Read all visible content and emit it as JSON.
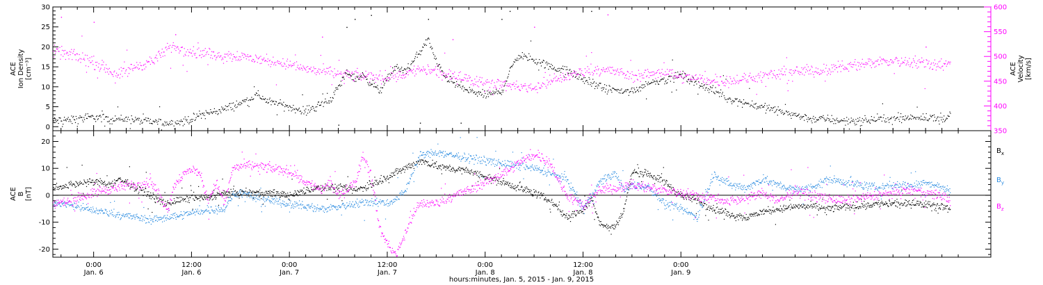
{
  "page": {
    "xaxis_title": "hours:minutes, Jan.  5, 2015 - Jan.  9, 2015"
  },
  "chart_data": [
    {
      "type": "scatter",
      "ylabel_left": [
        "ACE",
        "Ion Density",
        "[cm⁻³]"
      ],
      "ylabel_right": [
        "ACE",
        "Velocity",
        "[km/s]"
      ],
      "xlim": [
        -5,
        110
      ],
      "ylim": [
        -1,
        30
      ],
      "ylim_right": [
        350,
        600
      ],
      "yticks": [
        0,
        5,
        10,
        15,
        20,
        25,
        30
      ],
      "yticks_right": [
        350,
        400,
        450,
        500,
        550,
        600
      ],
      "series": [
        {
          "axis": "left",
          "color": "#000000",
          "x": [
            -5,
            -2,
            0,
            2,
            4,
            6,
            8,
            10,
            12,
            13,
            14,
            16,
            18,
            20,
            22,
            24,
            26,
            27,
            28,
            29,
            30,
            31,
            32,
            33,
            34,
            35,
            36,
            37,
            38,
            39,
            40,
            41,
            42,
            43,
            44,
            45,
            46,
            47,
            48,
            49,
            50,
            51,
            52,
            54,
            56,
            58,
            60,
            62,
            64,
            66,
            68,
            70,
            72,
            74,
            76,
            78,
            80,
            82,
            84,
            86,
            88,
            90,
            92,
            94,
            96,
            98,
            100,
            102,
            104,
            105
          ],
          "y": [
            1.5,
            2,
            2.5,
            2,
            2,
            1.5,
            1.2,
            1,
            2,
            3,
            3.5,
            4.5,
            6,
            8,
            6,
            5,
            4,
            5,
            6,
            7,
            10,
            14,
            12,
            13,
            11,
            9,
            12,
            15,
            14,
            16,
            19,
            22,
            16,
            13,
            11,
            10,
            9,
            8.5,
            8,
            8.5,
            9,
            14,
            18,
            17,
            15,
            14,
            12,
            10,
            9,
            9,
            11,
            12,
            13,
            11,
            9,
            7,
            6,
            5,
            4,
            3,
            2,
            2,
            1.5,
            1.5,
            2,
            2,
            2.5,
            2.5,
            2,
            3
          ],
          "noise": 0.9,
          "outliers": [
            [
              31,
              25
            ],
            [
              32,
              27
            ],
            [
              34,
              28
            ],
            [
              41,
              27
            ],
            [
              50,
              27
            ],
            [
              51,
              29
            ],
            [
              61,
              29
            ],
            [
              40,
              1
            ],
            [
              30,
              0.5
            ],
            [
              45,
              1
            ]
          ]
        },
        {
          "axis": "right",
          "color": "#ff00ff",
          "x": [
            -5,
            -3,
            -1,
            1,
            2,
            3,
            4,
            5,
            6,
            7,
            8,
            9,
            10,
            12,
            14,
            16,
            18,
            20,
            22,
            24,
            26,
            28,
            30,
            32,
            34,
            36,
            38,
            40,
            42,
            44,
            46,
            48,
            50,
            52,
            54,
            56,
            58,
            60,
            62,
            64,
            66,
            68,
            70,
            72,
            74,
            76,
            78,
            80,
            82,
            84,
            86,
            88,
            90,
            92,
            94,
            96,
            98,
            100,
            102,
            104,
            105
          ],
          "y": [
            510,
            505,
            495,
            480,
            470,
            465,
            470,
            480,
            485,
            490,
            500,
            515,
            520,
            510,
            505,
            503,
            502,
            495,
            490,
            485,
            475,
            470,
            465,
            462,
            460,
            458,
            465,
            475,
            470,
            460,
            455,
            448,
            445,
            440,
            438,
            450,
            460,
            470,
            475,
            470,
            460,
            465,
            470,
            460,
            455,
            450,
            452,
            455,
            460,
            465,
            470,
            472,
            475,
            480,
            485,
            490,
            492,
            490,
            488,
            485,
            483
          ],
          "noise": 10,
          "outliers": [
            [
              -4,
              580
            ],
            [
              0,
              570
            ],
            [
              10,
              545
            ],
            [
              28,
              540
            ],
            [
              54,
              560
            ],
            [
              63,
              585
            ],
            [
              102,
              520
            ],
            [
              44,
              535
            ]
          ]
        }
      ]
    },
    {
      "type": "scatter",
      "ylabel_left": [
        "ACE",
        "B",
        "[nT]"
      ],
      "xlim": [
        -5,
        110
      ],
      "ylim": [
        -23,
        24
      ],
      "yticks": [
        -20,
        -10,
        0,
        10,
        20
      ],
      "zero_line": true,
      "legend": [
        {
          "label": "B",
          "sub": "x",
          "color": "#000000"
        },
        {
          "label": "B",
          "sub": "y",
          "color": "#2a8be0"
        },
        {
          "label": "B",
          "sub": "z",
          "color": "#ff00ff"
        }
      ],
      "series": [
        {
          "name": "Bx",
          "color": "#000000",
          "noise": 1.2,
          "x": [
            -5,
            -3,
            -1,
            1,
            2,
            3,
            4,
            5,
            6,
            7,
            8,
            9,
            10,
            12,
            14,
            16,
            18,
            20,
            22,
            24,
            26,
            28,
            30,
            32,
            34,
            36,
            38,
            40,
            42,
            44,
            46,
            48,
            50,
            52,
            54,
            56,
            58,
            60,
            61,
            62,
            63,
            64,
            65,
            66,
            68,
            70,
            72,
            74,
            76,
            78,
            80,
            82,
            84,
            86,
            88,
            90,
            92,
            94,
            96,
            98,
            100,
            102,
            104,
            105
          ],
          "y": [
            3,
            4,
            5,
            5,
            4,
            6,
            5,
            3,
            2,
            0,
            -2,
            -3,
            -2,
            -1,
            -1,
            1,
            1,
            1,
            1,
            0,
            2,
            3,
            3,
            2,
            4,
            7,
            10,
            13,
            11,
            10,
            9,
            7,
            5,
            3,
            1,
            -2,
            -8,
            -5,
            -1,
            -10,
            -12,
            -11,
            -5,
            9,
            8,
            5,
            0,
            -2,
            -5,
            -7,
            -8,
            -6,
            -5,
            -4,
            -4,
            -5,
            -4,
            -4,
            -3,
            -3,
            -3,
            -3,
            -4,
            -5
          ]
        },
        {
          "name": "By",
          "color": "#2a8be0",
          "noise": 1.3,
          "x": [
            -5,
            -3,
            -1,
            1,
            3,
            5,
            7,
            9,
            11,
            13,
            15,
            16,
            17,
            18,
            20,
            22,
            24,
            26,
            28,
            30,
            32,
            34,
            36,
            38,
            40,
            42,
            44,
            46,
            48,
            50,
            52,
            54,
            56,
            58,
            60,
            62,
            63,
            64,
            65,
            66,
            68,
            70,
            72,
            74,
            76,
            78,
            80,
            82,
            84,
            86,
            88,
            90,
            92,
            94,
            96,
            98,
            100,
            102,
            104,
            105
          ],
          "y": [
            -3,
            -3,
            -5,
            -6,
            -7,
            -8,
            -9,
            -8,
            -7,
            -6,
            -5,
            -5,
            0,
            1,
            -1,
            -2,
            -3,
            -4,
            -5,
            -4,
            -3,
            -2,
            -3,
            1,
            15,
            16,
            15,
            14,
            13,
            12,
            11,
            10,
            8,
            6,
            -5,
            5,
            7,
            8,
            2,
            4,
            3,
            -3,
            -5,
            -8,
            8,
            4,
            3,
            6,
            4,
            2,
            3,
            6,
            5,
            4,
            3,
            4,
            4,
            5,
            3,
            2
          ]
        },
        {
          "name": "Bz",
          "color": "#ff00ff",
          "noise": 1.6,
          "x": [
            -5,
            -3,
            -1,
            1,
            3,
            5,
            7,
            8,
            9,
            10,
            11,
            12,
            13,
            14,
            15,
            16,
            17,
            18,
            20,
            22,
            24,
            26,
            28,
            29,
            30,
            31,
            32,
            33,
            34,
            35,
            36,
            37,
            38,
            39,
            40,
            42,
            44,
            46,
            48,
            50,
            52,
            54,
            55,
            56,
            57,
            58,
            60,
            62,
            64,
            66,
            68,
            70,
            72,
            74,
            76,
            78,
            80,
            82,
            84,
            86,
            88,
            90,
            92,
            94,
            96,
            98,
            100,
            102,
            104,
            105
          ],
          "y": [
            -3,
            -2,
            0,
            2,
            3,
            4,
            5,
            0,
            -5,
            5,
            8,
            10,
            8,
            -2,
            5,
            -3,
            10,
            11,
            11,
            10,
            9,
            5,
            2,
            5,
            0,
            2,
            5,
            15,
            8,
            -12,
            -18,
            -22,
            -15,
            -8,
            -3,
            -3,
            0,
            2,
            5,
            8,
            12,
            15,
            14,
            12,
            5,
            0,
            -4,
            2,
            3,
            4,
            3,
            2,
            1,
            0,
            -1,
            -2,
            -1,
            1,
            -2,
            2,
            0,
            -1,
            -2,
            -1,
            0,
            1,
            2,
            1,
            0,
            -2
          ]
        }
      ]
    }
  ],
  "xaxis": {
    "ticks": [
      {
        "x": 0,
        "top": "0:00",
        "bottom": "Jan. 6"
      },
      {
        "x": 12,
        "top": "12:00",
        "bottom": "Jan. 6"
      },
      {
        "x": 24,
        "top": "0:00",
        "bottom": "Jan. 7"
      },
      {
        "x": 36,
        "top": "12:00",
        "bottom": "Jan. 7"
      },
      {
        "x": 48,
        "top": "0:00",
        "bottom": "Jan. 8"
      },
      {
        "x": 60,
        "top": "12:00",
        "bottom": "Jan. 8"
      },
      {
        "x": 72,
        "top": "0:00",
        "bottom": "Jan. 9"
      }
    ]
  }
}
